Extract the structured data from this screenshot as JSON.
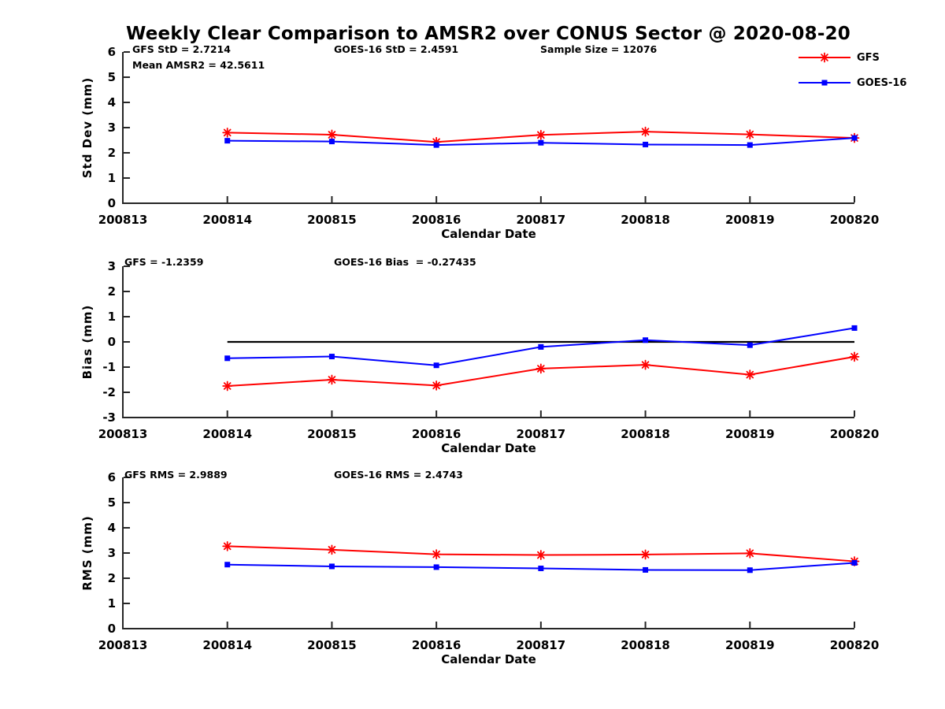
{
  "title": "Weekly Clear Comparison to AMSR2 over CONUS Sector @ 2020-08-20",
  "colors": {
    "gfs": "#ff0000",
    "goes16": "#0000ff",
    "axis": "#262626",
    "zero_line": "#000000",
    "text": "#000000",
    "background": "#ffffff"
  },
  "legend": [
    {
      "label": "GFS",
      "color": "#ff0000",
      "marker": "asterisk"
    },
    {
      "label": "GOES-16",
      "color": "#0000ff",
      "marker": "square"
    }
  ],
  "chart_data": [
    {
      "type": "line",
      "title": "",
      "ylabel": "Std Dev (mm)",
      "xlabel": "Calendar Date",
      "ylim": [
        0,
        6
      ],
      "yticks": [
        0,
        1,
        2,
        3,
        4,
        5,
        6
      ],
      "xticks": [
        "200813",
        "200814",
        "200815",
        "200816",
        "200817",
        "200818",
        "200819",
        "200820"
      ],
      "x": [
        "200814",
        "200815",
        "200816",
        "200817",
        "200818",
        "200819",
        "200820"
      ],
      "zero_line": false,
      "grid": false,
      "annotations": [
        "GFS StD = 2.7214",
        "Mean AMSR2 = 42.5611",
        "GOES-16 StD = 2.4591",
        "Sample Size = 12076"
      ],
      "series": [
        {
          "name": "GFS",
          "color": "#ff0000",
          "marker": "asterisk",
          "values": [
            2.8,
            2.72,
            2.43,
            2.71,
            2.84,
            2.73,
            2.59
          ]
        },
        {
          "name": "GOES-16",
          "color": "#0000ff",
          "marker": "square",
          "values": [
            2.48,
            2.45,
            2.31,
            2.4,
            2.33,
            2.31,
            2.59
          ]
        }
      ]
    },
    {
      "type": "line",
      "title": "",
      "ylabel": "Bias (mm)",
      "xlabel": "Calendar Date",
      "ylim": [
        -3,
        3
      ],
      "yticks": [
        3,
        2,
        1,
        0,
        -1,
        -2,
        -3
      ],
      "xticks": [
        "200813",
        "200814",
        "200815",
        "200816",
        "200817",
        "200818",
        "200819",
        "200820"
      ],
      "x": [
        "200814",
        "200815",
        "200816",
        "200817",
        "200818",
        "200819",
        "200820"
      ],
      "zero_line": true,
      "grid": false,
      "annotations": [
        "GFS = -1.2359",
        "GOES-16 Bias  = -0.27435"
      ],
      "series": [
        {
          "name": "GFS",
          "color": "#ff0000",
          "marker": "asterisk",
          "values": [
            -1.75,
            -1.5,
            -1.73,
            -1.06,
            -0.91,
            -1.3,
            -0.59
          ]
        },
        {
          "name": "GOES-16",
          "color": "#0000ff",
          "marker": "square",
          "values": [
            -0.65,
            -0.58,
            -0.93,
            -0.2,
            0.07,
            -0.13,
            0.55
          ]
        }
      ]
    },
    {
      "type": "line",
      "title": "",
      "ylabel": "RMS (mm)",
      "xlabel": "Calendar Date",
      "ylim": [
        0,
        6
      ],
      "yticks": [
        0,
        1,
        2,
        3,
        4,
        5,
        6
      ],
      "xticks": [
        "200813",
        "200814",
        "200815",
        "200816",
        "200817",
        "200818",
        "200819",
        "200820"
      ],
      "x": [
        "200814",
        "200815",
        "200816",
        "200817",
        "200818",
        "200819",
        "200820"
      ],
      "zero_line": false,
      "grid": false,
      "annotations": [
        "GFS RMS = 2.9889",
        "GOES-16 RMS = 2.4743"
      ],
      "series": [
        {
          "name": "GFS",
          "color": "#ff0000",
          "marker": "asterisk",
          "values": [
            3.27,
            3.13,
            2.95,
            2.92,
            2.94,
            2.99,
            2.67
          ]
        },
        {
          "name": "GOES-16",
          "color": "#0000ff",
          "marker": "square",
          "values": [
            2.54,
            2.47,
            2.44,
            2.39,
            2.33,
            2.32,
            2.61
          ]
        }
      ]
    }
  ]
}
